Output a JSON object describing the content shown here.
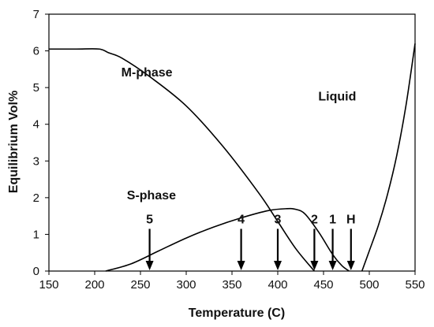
{
  "chart_data": {
    "type": "line",
    "xlabel": "Temperature (C)",
    "ylabel": "Equilibrium Vol%",
    "xlim": [
      150,
      550
    ],
    "ylim": [
      0,
      7
    ],
    "xticks": [
      150,
      200,
      250,
      300,
      350,
      400,
      450,
      500,
      550
    ],
    "yticks": [
      0,
      1,
      2,
      3,
      4,
      5,
      6,
      7
    ],
    "grid": false,
    "series": [
      {
        "name": "M-phase",
        "x": [
          150,
          180,
          205,
          215,
          230,
          260,
          300,
          340,
          380,
          400,
          420,
          440
        ],
        "y": [
          6.05,
          6.05,
          6.05,
          5.95,
          5.8,
          5.3,
          4.5,
          3.4,
          2.1,
          1.35,
          0.6,
          0
        ]
      },
      {
        "name": "S-phase",
        "x": [
          212,
          240,
          270,
          300,
          330,
          360,
          390,
          410,
          420,
          430,
          445,
          460,
          470,
          478
        ],
        "y": [
          0,
          0.2,
          0.55,
          0.9,
          1.2,
          1.45,
          1.65,
          1.7,
          1.68,
          1.55,
          1.05,
          0.45,
          0.15,
          0
        ]
      },
      {
        "name": "Liquid",
        "x": [
          492,
          500,
          510,
          520,
          530,
          540,
          550
        ],
        "y": [
          0,
          0.55,
          1.25,
          2.1,
          3.15,
          4.5,
          6.2
        ]
      }
    ],
    "markers": [
      {
        "label": "5",
        "x": 260
      },
      {
        "label": "4",
        "x": 360
      },
      {
        "label": "3",
        "x": 400
      },
      {
        "label": "2",
        "x": 440
      },
      {
        "label": "1",
        "x": 460
      },
      {
        "label": "H",
        "x": 480
      }
    ],
    "marker_arrow_top_y": 1.15,
    "series_labels": [
      {
        "text": "M-phase",
        "x": 257,
        "y": 5.3
      },
      {
        "text": "S-phase",
        "x": 262,
        "y": 1.95
      },
      {
        "text": "Liquid",
        "x": 465,
        "y": 4.65
      }
    ]
  }
}
